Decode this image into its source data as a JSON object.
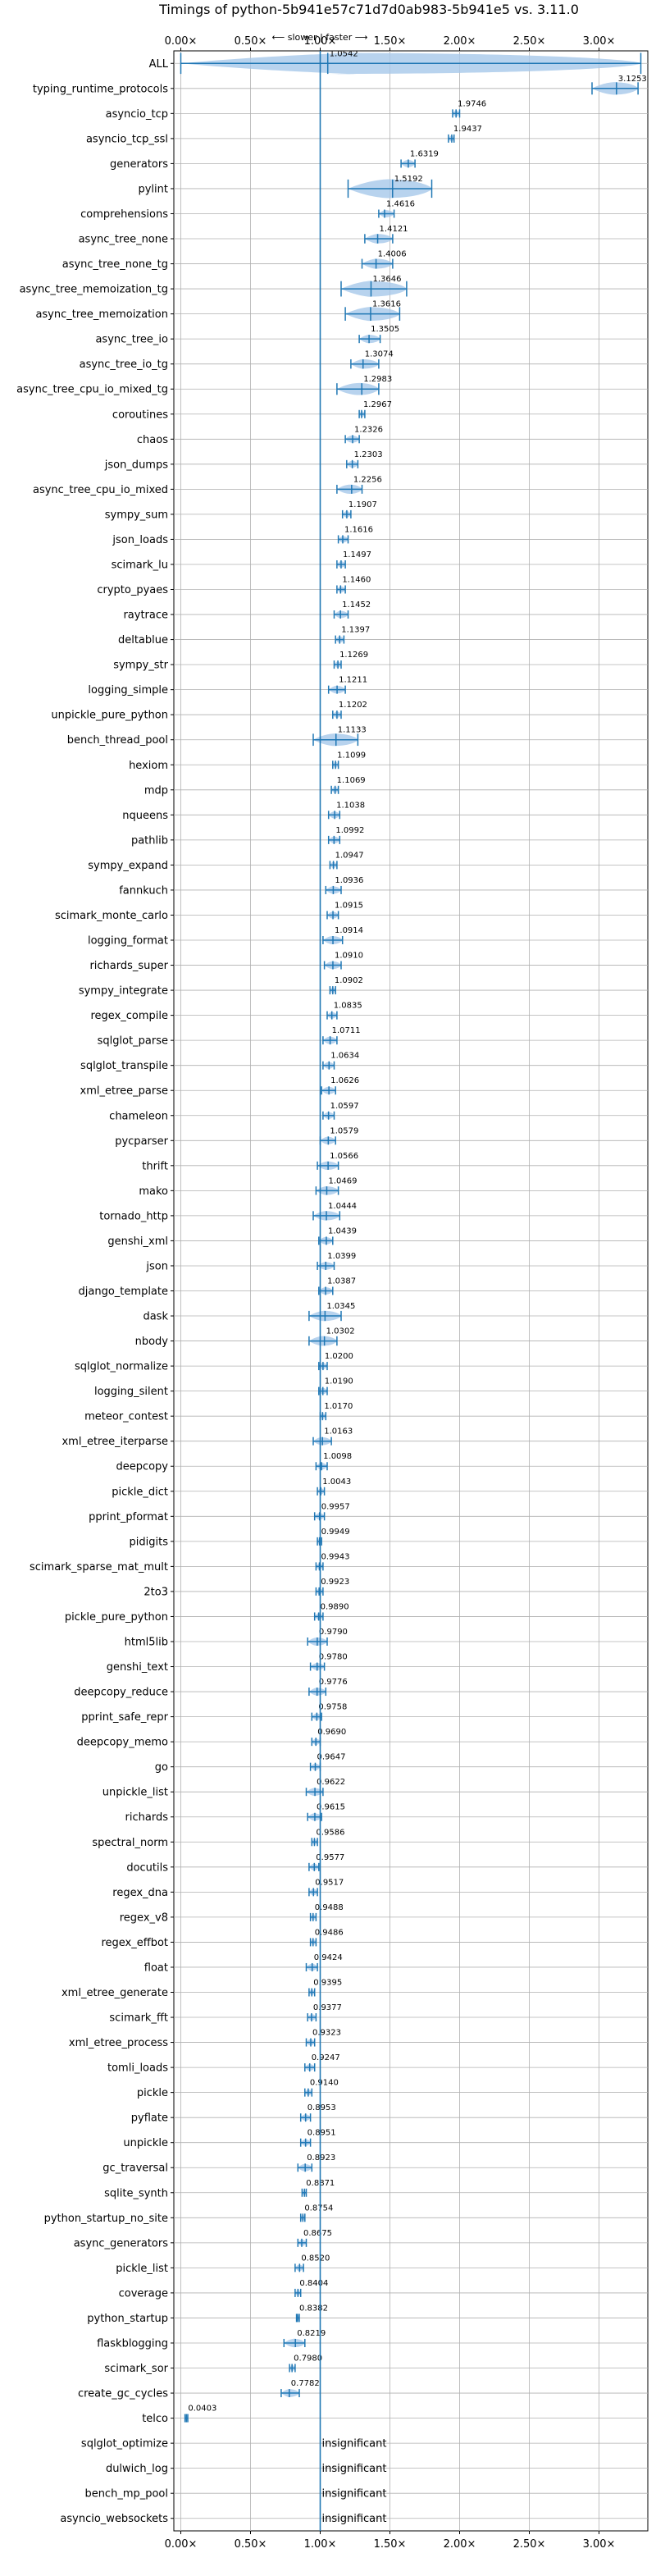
{
  "chart_data": {
    "type": "violin",
    "title": "Timings of python-5b941e57c71d7d0ab983-5b941e5 vs. 3.11.0",
    "header_note": "⟵ slower | faster ⟶",
    "xlabel": "",
    "ylabel": "",
    "xlim": [
      -0.05,
      3.35
    ],
    "xticks": [
      0.0,
      0.5,
      1.0,
      1.5,
      2.0,
      2.5,
      3.0
    ],
    "xtick_labels": [
      "0.00×",
      "0.50×",
      "1.00×",
      "1.50×",
      "2.00×",
      "2.50×",
      "3.00×"
    ],
    "reference_line": 1.0,
    "grid": true,
    "insignificant_label": "insignificant",
    "benchmarks": [
      {
        "name": "ALL",
        "mean": 1.0542,
        "label": "1.0542",
        "lo": 0.0,
        "hi": 3.3
      },
      {
        "name": "typing_runtime_protocols",
        "mean": 3.1253,
        "label": "3.1253",
        "lo": 2.95,
        "hi": 3.28
      },
      {
        "name": "asyncio_tcp",
        "mean": 1.9746,
        "label": "1.9746",
        "lo": 1.95,
        "hi": 2.0
      },
      {
        "name": "asyncio_tcp_ssl",
        "mean": 1.9437,
        "label": "1.9437",
        "lo": 1.92,
        "hi": 1.96
      },
      {
        "name": "generators",
        "mean": 1.6319,
        "label": "1.6319",
        "lo": 1.58,
        "hi": 1.68
      },
      {
        "name": "pylint",
        "mean": 1.5192,
        "label": "1.5192",
        "lo": 1.2,
        "hi": 1.8
      },
      {
        "name": "comprehensions",
        "mean": 1.4616,
        "label": "1.4616",
        "lo": 1.42,
        "hi": 1.53
      },
      {
        "name": "async_tree_none",
        "mean": 1.4121,
        "label": "1.4121",
        "lo": 1.32,
        "hi": 1.52
      },
      {
        "name": "async_tree_none_tg",
        "mean": 1.4006,
        "label": "1.4006",
        "lo": 1.3,
        "hi": 1.52
      },
      {
        "name": "async_tree_memoization_tg",
        "mean": 1.3646,
        "label": "1.3646",
        "lo": 1.15,
        "hi": 1.62
      },
      {
        "name": "async_tree_memoization",
        "mean": 1.3616,
        "label": "1.3616",
        "lo": 1.18,
        "hi": 1.57
      },
      {
        "name": "async_tree_io",
        "mean": 1.3505,
        "label": "1.3505",
        "lo": 1.28,
        "hi": 1.43
      },
      {
        "name": "async_tree_io_tg",
        "mean": 1.3074,
        "label": "1.3074",
        "lo": 1.22,
        "hi": 1.42
      },
      {
        "name": "async_tree_cpu_io_mixed_tg",
        "mean": 1.2983,
        "label": "1.2983",
        "lo": 1.12,
        "hi": 1.42
      },
      {
        "name": "coroutines",
        "mean": 1.2967,
        "label": "1.2967",
        "lo": 1.28,
        "hi": 1.32
      },
      {
        "name": "chaos",
        "mean": 1.2326,
        "label": "1.2326",
        "lo": 1.18,
        "hi": 1.28
      },
      {
        "name": "json_dumps",
        "mean": 1.2303,
        "label": "1.2303",
        "lo": 1.19,
        "hi": 1.27
      },
      {
        "name": "async_tree_cpu_io_mixed",
        "mean": 1.2256,
        "label": "1.2256",
        "lo": 1.12,
        "hi": 1.3
      },
      {
        "name": "sympy_sum",
        "mean": 1.1907,
        "label": "1.1907",
        "lo": 1.16,
        "hi": 1.22
      },
      {
        "name": "json_loads",
        "mean": 1.1616,
        "label": "1.1616",
        "lo": 1.13,
        "hi": 1.2
      },
      {
        "name": "scimark_lu",
        "mean": 1.1497,
        "label": "1.1497",
        "lo": 1.12,
        "hi": 1.18
      },
      {
        "name": "crypto_pyaes",
        "mean": 1.146,
        "label": "1.1460",
        "lo": 1.12,
        "hi": 1.18
      },
      {
        "name": "raytrace",
        "mean": 1.1452,
        "label": "1.1452",
        "lo": 1.1,
        "hi": 1.2
      },
      {
        "name": "deltablue",
        "mean": 1.1397,
        "label": "1.1397",
        "lo": 1.11,
        "hi": 1.17
      },
      {
        "name": "sympy_str",
        "mean": 1.1269,
        "label": "1.1269",
        "lo": 1.1,
        "hi": 1.15
      },
      {
        "name": "logging_simple",
        "mean": 1.1211,
        "label": "1.1211",
        "lo": 1.06,
        "hi": 1.18
      },
      {
        "name": "unpickle_pure_python",
        "mean": 1.1202,
        "label": "1.1202",
        "lo": 1.09,
        "hi": 1.15
      },
      {
        "name": "bench_thread_pool",
        "mean": 1.1133,
        "label": "1.1133",
        "lo": 0.95,
        "hi": 1.27
      },
      {
        "name": "hexiom",
        "mean": 1.1099,
        "label": "1.1099",
        "lo": 1.09,
        "hi": 1.13
      },
      {
        "name": "mdp",
        "mean": 1.1069,
        "label": "1.1069",
        "lo": 1.08,
        "hi": 1.13
      },
      {
        "name": "nqueens",
        "mean": 1.1038,
        "label": "1.1038",
        "lo": 1.06,
        "hi": 1.14
      },
      {
        "name": "pathlib",
        "mean": 1.0992,
        "label": "1.0992",
        "lo": 1.06,
        "hi": 1.14
      },
      {
        "name": "sympy_expand",
        "mean": 1.0947,
        "label": "1.0947",
        "lo": 1.07,
        "hi": 1.12
      },
      {
        "name": "fannkuch",
        "mean": 1.0936,
        "label": "1.0936",
        "lo": 1.04,
        "hi": 1.15
      },
      {
        "name": "scimark_monte_carlo",
        "mean": 1.0915,
        "label": "1.0915",
        "lo": 1.05,
        "hi": 1.13
      },
      {
        "name": "logging_format",
        "mean": 1.0914,
        "label": "1.0914",
        "lo": 1.02,
        "hi": 1.16
      },
      {
        "name": "richards_super",
        "mean": 1.091,
        "label": "1.0910",
        "lo": 1.03,
        "hi": 1.15
      },
      {
        "name": "sympy_integrate",
        "mean": 1.0902,
        "label": "1.0902",
        "lo": 1.07,
        "hi": 1.11
      },
      {
        "name": "regex_compile",
        "mean": 1.0835,
        "label": "1.0835",
        "lo": 1.05,
        "hi": 1.12
      },
      {
        "name": "sqlglot_parse",
        "mean": 1.0711,
        "label": "1.0711",
        "lo": 1.02,
        "hi": 1.12
      },
      {
        "name": "sqlglot_transpile",
        "mean": 1.0634,
        "label": "1.0634",
        "lo": 1.02,
        "hi": 1.1
      },
      {
        "name": "xml_etree_parse",
        "mean": 1.0626,
        "label": "1.0626",
        "lo": 1.01,
        "hi": 1.11
      },
      {
        "name": "chameleon",
        "mean": 1.0597,
        "label": "1.0597",
        "lo": 1.02,
        "hi": 1.1
      },
      {
        "name": "pycparser",
        "mean": 1.0579,
        "label": "1.0579",
        "lo": 1.0,
        "hi": 1.11
      },
      {
        "name": "thrift",
        "mean": 1.0566,
        "label": "1.0566",
        "lo": 0.98,
        "hi": 1.13
      },
      {
        "name": "mako",
        "mean": 1.0469,
        "label": "1.0469",
        "lo": 0.97,
        "hi": 1.13
      },
      {
        "name": "tornado_http",
        "mean": 1.0444,
        "label": "1.0444",
        "lo": 0.95,
        "hi": 1.14
      },
      {
        "name": "genshi_xml",
        "mean": 1.0439,
        "label": "1.0439",
        "lo": 0.99,
        "hi": 1.09
      },
      {
        "name": "json",
        "mean": 1.0399,
        "label": "1.0399",
        "lo": 0.98,
        "hi": 1.1
      },
      {
        "name": "django_template",
        "mean": 1.0387,
        "label": "1.0387",
        "lo": 0.99,
        "hi": 1.09
      },
      {
        "name": "dask",
        "mean": 1.0345,
        "label": "1.0345",
        "lo": 0.92,
        "hi": 1.15
      },
      {
        "name": "nbody",
        "mean": 1.0302,
        "label": "1.0302",
        "lo": 0.92,
        "hi": 1.12
      },
      {
        "name": "sqlglot_normalize",
        "mean": 1.02,
        "label": "1.0200",
        "lo": 0.99,
        "hi": 1.05
      },
      {
        "name": "logging_silent",
        "mean": 1.019,
        "label": "1.0190",
        "lo": 0.99,
        "hi": 1.05
      },
      {
        "name": "meteor_contest",
        "mean": 1.017,
        "label": "1.0170",
        "lo": 1.0,
        "hi": 1.04
      },
      {
        "name": "xml_etree_iterparse",
        "mean": 1.0163,
        "label": "1.0163",
        "lo": 0.95,
        "hi": 1.08
      },
      {
        "name": "deepcopy",
        "mean": 1.0098,
        "label": "1.0098",
        "lo": 0.97,
        "hi": 1.05
      },
      {
        "name": "pickle_dict",
        "mean": 1.0043,
        "label": "1.0043",
        "lo": 0.98,
        "hi": 1.03
      },
      {
        "name": "pprint_pformat",
        "mean": 0.9957,
        "label": "0.9957",
        "lo": 0.96,
        "hi": 1.03
      },
      {
        "name": "pidigits",
        "mean": 0.9949,
        "label": "0.9949",
        "lo": 0.98,
        "hi": 1.01
      },
      {
        "name": "scimark_sparse_mat_mult",
        "mean": 0.9943,
        "label": "0.9943",
        "lo": 0.97,
        "hi": 1.02
      },
      {
        "name": "2to3",
        "mean": 0.9923,
        "label": "0.9923",
        "lo": 0.97,
        "hi": 1.02
      },
      {
        "name": "pickle_pure_python",
        "mean": 0.989,
        "label": "0.9890",
        "lo": 0.96,
        "hi": 1.02
      },
      {
        "name": "html5lib",
        "mean": 0.979,
        "label": "0.9790",
        "lo": 0.91,
        "hi": 1.05
      },
      {
        "name": "genshi_text",
        "mean": 0.978,
        "label": "0.9780",
        "lo": 0.93,
        "hi": 1.03
      },
      {
        "name": "deepcopy_reduce",
        "mean": 0.9776,
        "label": "0.9776",
        "lo": 0.92,
        "hi": 1.04
      },
      {
        "name": "pprint_safe_repr",
        "mean": 0.9758,
        "label": "0.9758",
        "lo": 0.94,
        "hi": 1.01
      },
      {
        "name": "deepcopy_memo",
        "mean": 0.969,
        "label": "0.9690",
        "lo": 0.94,
        "hi": 1.0
      },
      {
        "name": "go",
        "mean": 0.9647,
        "label": "0.9647",
        "lo": 0.93,
        "hi": 1.0
      },
      {
        "name": "unpickle_list",
        "mean": 0.9622,
        "label": "0.9622",
        "lo": 0.9,
        "hi": 1.02
      },
      {
        "name": "richards",
        "mean": 0.9615,
        "label": "0.9615",
        "lo": 0.91,
        "hi": 1.01
      },
      {
        "name": "spectral_norm",
        "mean": 0.9586,
        "label": "0.9586",
        "lo": 0.94,
        "hi": 0.98
      },
      {
        "name": "docutils",
        "mean": 0.9577,
        "label": "0.9577",
        "lo": 0.92,
        "hi": 0.99
      },
      {
        "name": "regex_dna",
        "mean": 0.9517,
        "label": "0.9517",
        "lo": 0.92,
        "hi": 0.98
      },
      {
        "name": "regex_v8",
        "mean": 0.9488,
        "label": "0.9488",
        "lo": 0.93,
        "hi": 0.97
      },
      {
        "name": "regex_effbot",
        "mean": 0.9486,
        "label": "0.9486",
        "lo": 0.93,
        "hi": 0.97
      },
      {
        "name": "float",
        "mean": 0.9424,
        "label": "0.9424",
        "lo": 0.9,
        "hi": 0.98
      },
      {
        "name": "xml_etree_generate",
        "mean": 0.9395,
        "label": "0.9395",
        "lo": 0.92,
        "hi": 0.96
      },
      {
        "name": "scimark_fft",
        "mean": 0.9377,
        "label": "0.9377",
        "lo": 0.91,
        "hi": 0.97
      },
      {
        "name": "xml_etree_process",
        "mean": 0.9323,
        "label": "0.9323",
        "lo": 0.9,
        "hi": 0.96
      },
      {
        "name": "tomli_loads",
        "mean": 0.9247,
        "label": "0.9247",
        "lo": 0.89,
        "hi": 0.96
      },
      {
        "name": "pickle",
        "mean": 0.914,
        "label": "0.9140",
        "lo": 0.89,
        "hi": 0.94
      },
      {
        "name": "pyflate",
        "mean": 0.8953,
        "label": "0.8953",
        "lo": 0.86,
        "hi": 0.93
      },
      {
        "name": "unpickle",
        "mean": 0.8951,
        "label": "0.8951",
        "lo": 0.86,
        "hi": 0.93
      },
      {
        "name": "gc_traversal",
        "mean": 0.8923,
        "label": "0.8923",
        "lo": 0.84,
        "hi": 0.94
      },
      {
        "name": "sqlite_synth",
        "mean": 0.8871,
        "label": "0.8871",
        "lo": 0.87,
        "hi": 0.9
      },
      {
        "name": "python_startup_no_site",
        "mean": 0.8754,
        "label": "0.8754",
        "lo": 0.86,
        "hi": 0.89
      },
      {
        "name": "async_generators",
        "mean": 0.8675,
        "label": "0.8675",
        "lo": 0.84,
        "hi": 0.9
      },
      {
        "name": "pickle_list",
        "mean": 0.852,
        "label": "0.8520",
        "lo": 0.82,
        "hi": 0.88
      },
      {
        "name": "coverage",
        "mean": 0.8404,
        "label": "0.8404",
        "lo": 0.82,
        "hi": 0.86
      },
      {
        "name": "python_startup",
        "mean": 0.8382,
        "label": "0.8382",
        "lo": 0.83,
        "hi": 0.85
      },
      {
        "name": "flaskblogging",
        "mean": 0.8219,
        "label": "0.8219",
        "lo": 0.74,
        "hi": 0.89
      },
      {
        "name": "scimark_sor",
        "mean": 0.798,
        "label": "0.7980",
        "lo": 0.78,
        "hi": 0.82
      },
      {
        "name": "create_gc_cycles",
        "mean": 0.7782,
        "label": "0.7782",
        "lo": 0.72,
        "hi": 0.85
      },
      {
        "name": "telco",
        "mean": 0.0403,
        "label": "0.0403",
        "lo": 0.03,
        "hi": 0.05
      },
      {
        "name": "sqlglot_optimize",
        "mean": null,
        "label": ""
      },
      {
        "name": "dulwich_log",
        "mean": null,
        "label": ""
      },
      {
        "name": "bench_mp_pool",
        "mean": null,
        "label": ""
      },
      {
        "name": "asyncio_websockets",
        "mean": null,
        "label": ""
      }
    ]
  }
}
